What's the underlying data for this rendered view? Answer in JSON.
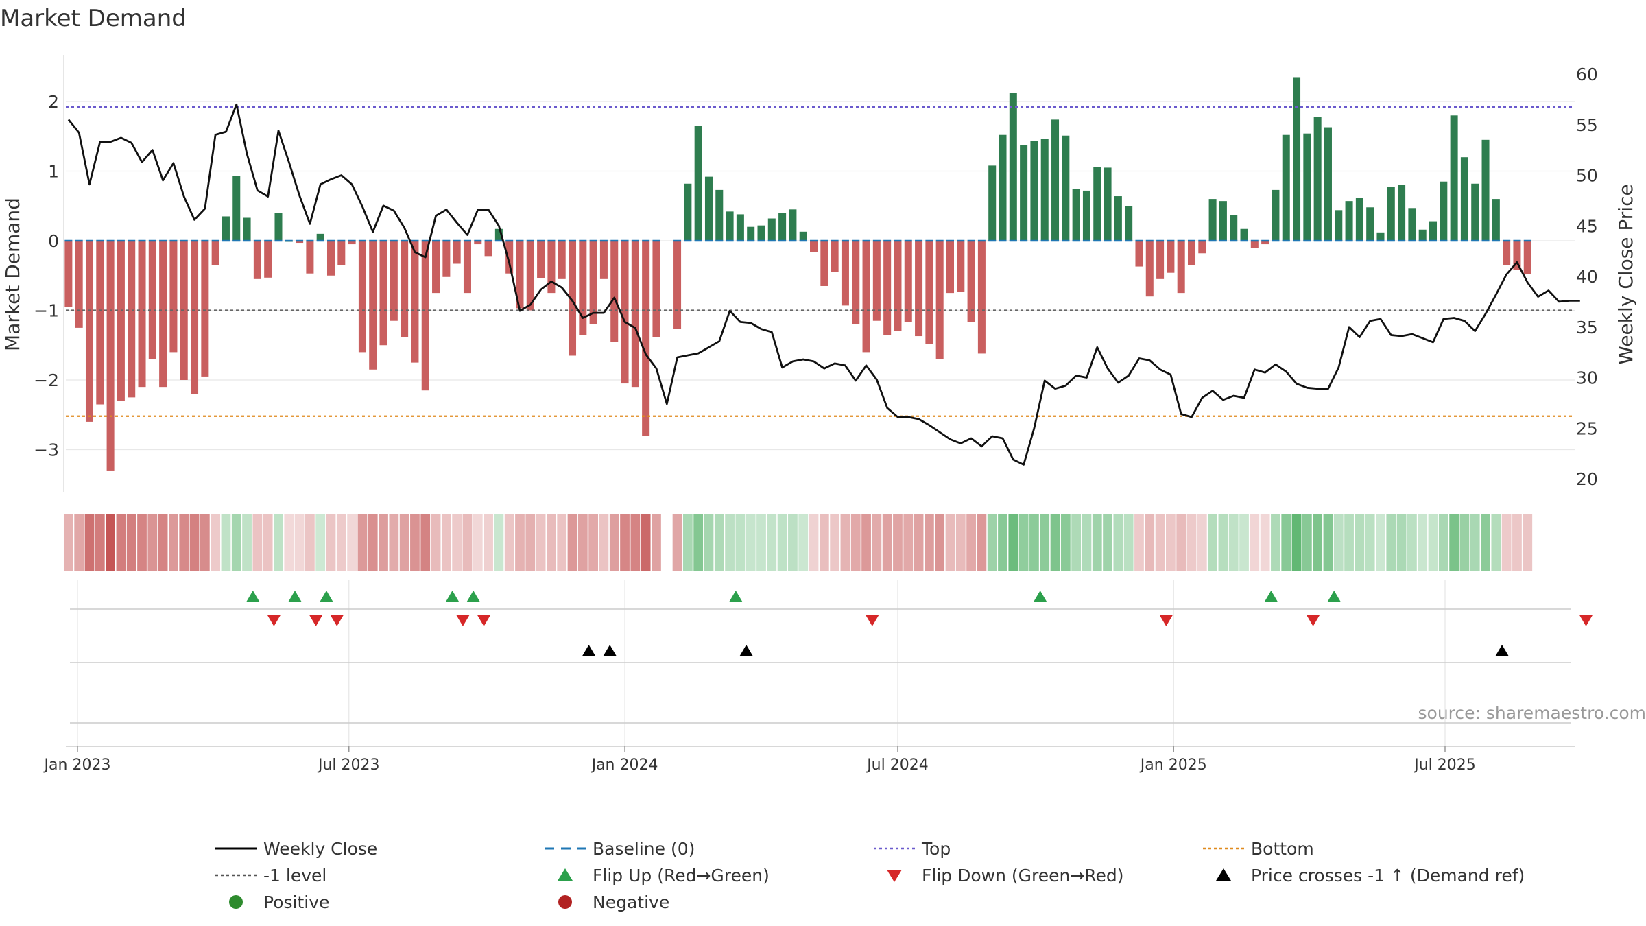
{
  "chart_data": {
    "type": "bar",
    "title": "Market Demand",
    "ylabel": "Market Demand",
    "y2label": "Weekly Close Price",
    "source": "source: sharemaestro.com",
    "ylim": [
      -3.7,
      2.6
    ],
    "y2lim": [
      19,
      61
    ],
    "yticks": [
      2,
      1,
      0,
      -1,
      -2,
      -3
    ],
    "ytick_labels": [
      "2",
      "1",
      "0",
      "−1",
      "−2",
      "−3"
    ],
    "y2ticks": [
      60,
      55,
      50,
      45,
      40,
      35,
      30,
      25,
      20
    ],
    "x_start": "2023-01-01",
    "x_end": "2025-10-31",
    "x_ticks": [
      {
        "date": "2023-01-01",
        "label": "Jan 2023"
      },
      {
        "date": "2023-07-01",
        "label": "Jul 2023"
      },
      {
        "date": "2024-01-01",
        "label": "Jan 2024"
      },
      {
        "date": "2024-07-01",
        "label": "Jul 2024"
      },
      {
        "date": "2025-01-01",
        "label": "Jan 2025"
      },
      {
        "date": "2025-07-01",
        "label": "Jul 2025"
      }
    ],
    "start_week": "2022-12-26",
    "demand": [
      -0.95,
      -1.25,
      -2.6,
      -2.35,
      -3.3,
      -2.3,
      -2.25,
      -2.1,
      -1.7,
      -2.1,
      -1.6,
      -2.0,
      -2.2,
      -1.95,
      -0.35,
      0.35,
      0.93,
      0.33,
      -0.55,
      -0.53,
      0.4,
      0,
      -0.03,
      -0.47,
      0.1,
      -0.5,
      -0.35,
      -0.05,
      -1.6,
      -1.85,
      -1.5,
      -1.15,
      -1.38,
      -1.75,
      -2.15,
      -0.75,
      -0.52,
      -0.33,
      -0.75,
      -0.05,
      -0.22,
      0.17,
      -0.47,
      -0.97,
      -1.0,
      -0.54,
      -0.75,
      -0.55,
      -1.65,
      -1.35,
      -1.2,
      -0.55,
      -1.45,
      -2.05,
      -2.1,
      -2.8,
      -1.38,
      null,
      -1.27,
      0.82,
      1.65,
      0.92,
      0.73,
      0.42,
      0.38,
      0.2,
      0.22,
      0.32,
      0.4,
      0.45,
      0.13,
      -0.16,
      -0.65,
      -0.45,
      -0.93,
      -1.2,
      -1.6,
      -1.15,
      -1.35,
      -1.3,
      -1.17,
      -1.37,
      -1.48,
      -1.7,
      -0.75,
      -0.73,
      -1.17,
      -1.62,
      1.08,
      1.52,
      2.12,
      1.37,
      1.43,
      1.46,
      1.74,
      1.51,
      0.74,
      0.72,
      1.06,
      1.05,
      0.64,
      0.5,
      -0.37,
      -0.8,
      -0.55,
      -0.46,
      -0.75,
      -0.35,
      -0.18,
      0.6,
      0.57,
      0.37,
      0.17,
      -0.1,
      -0.05,
      0.73,
      1.52,
      2.35,
      1.54,
      1.78,
      1.63,
      0.44,
      0.57,
      0.62,
      0.48,
      0.12,
      0.77,
      0.8,
      0.47,
      0.16,
      0.28,
      0.85,
      1.8,
      1.2,
      0.82,
      1.45,
      0.6,
      -0.35,
      -0.42,
      -0.48
    ],
    "close": [
      55.5,
      54.2,
      49.1,
      53.3,
      53.3,
      53.7,
      53.2,
      51.3,
      52.5,
      49.5,
      51.2,
      47.9,
      45.6,
      46.7,
      54.0,
      54.3,
      57.0,
      52.1,
      48.5,
      47.9,
      54.4,
      51.3,
      48.0,
      45.2,
      49.1,
      49.6,
      50.0,
      49.1,
      46.9,
      44.4,
      47.0,
      46.5,
      44.8,
      42.4,
      41.9,
      46.0,
      46.6,
      45.3,
      44.1,
      46.6,
      46.6,
      45.0,
      41.3,
      36.6,
      37.2,
      38.7,
      39.5,
      38.9,
      37.6,
      35.9,
      36.4,
      36.4,
      37.9,
      35.5,
      34.9,
      32.3,
      30.9,
      27.4,
      32.0,
      32.2,
      32.4,
      33.0,
      33.6,
      36.6,
      35.5,
      35.4,
      34.8,
      34.5,
      31.0,
      31.6,
      31.8,
      31.6,
      30.9,
      31.4,
      31.2,
      29.7,
      31.2,
      29.8,
      27.0,
      26.1,
      26.1,
      25.9,
      25.3,
      24.6,
      23.9,
      23.5,
      24.0,
      23.2,
      24.2,
      24.0,
      21.9,
      21.4,
      25.0,
      29.7,
      28.9,
      29.2,
      30.2,
      30.0,
      33.0,
      30.9,
      29.5,
      30.2,
      31.9,
      31.7,
      30.8,
      30.3,
      26.4,
      26.1,
      28.0,
      28.7,
      27.8,
      28.2,
      28.0,
      30.8,
      30.5,
      31.3,
      30.6,
      29.4,
      29.0,
      28.9,
      28.9,
      31.0,
      35.0,
      34.0,
      35.6,
      35.8,
      34.2,
      34.1,
      34.3,
      33.9,
      33.5,
      35.8,
      35.9,
      35.6,
      34.6,
      36.3,
      38.2,
      40.2,
      41.4,
      39.4,
      38.0,
      38.6,
      37.5,
      37.6,
      37.6
    ],
    "missing_label": "",
    "levels": {
      "top": 1.92,
      "minus_one": -1.0,
      "bottom": -2.52,
      "baseline": 0
    },
    "flip_up_dates": [
      "2023-04-28",
      "2023-05-26",
      "2023-06-16",
      "2023-09-08",
      "2023-09-22",
      "2024-03-15",
      "2024-10-04",
      "2025-03-07",
      "2025-04-18"
    ],
    "flip_down_dates": [
      "2023-05-12",
      "2023-06-09",
      "2023-06-23",
      "2023-09-15",
      "2023-09-29",
      "2024-06-14",
      "2024-12-27",
      "2025-04-04",
      "2025-10-03"
    ],
    "price_cross_dates": [
      "2023-12-08",
      "2023-12-22",
      "2024-03-22",
      "2025-08-08"
    ],
    "legend": [
      {
        "label": "Weekly Close",
        "marker": "solid-line",
        "color": "#000000"
      },
      {
        "label": "Baseline (0)",
        "marker": "dashed-line",
        "color": "#1f77b4"
      },
      {
        "label": "Top",
        "marker": "dotted-line",
        "color": "#6a5acd"
      },
      {
        "label": "Bottom",
        "marker": "dotted-line",
        "color": "#e08a1e"
      },
      {
        "label": "-1 level",
        "marker": "dotted-line",
        "color": "#555555"
      },
      {
        "label": "Flip Up (Red→Green)",
        "marker": "triangle-up",
        "color": "#2ca04c"
      },
      {
        "label": "Flip Down (Green→Red)",
        "marker": "triangle-down",
        "color": "#d62728"
      },
      {
        "label": "Price crosses -1 ↑ (Demand ref)",
        "marker": "triangle-up",
        "color": "#000000"
      },
      {
        "label": "Positive",
        "marker": "circle",
        "color": "#2e8b2e"
      },
      {
        "label": "Negative",
        "marker": "circle",
        "color": "#b22222"
      }
    ],
    "colors": {
      "positive": "#2e7d4f",
      "negative": "#c95f5f",
      "close": "#111111"
    }
  }
}
